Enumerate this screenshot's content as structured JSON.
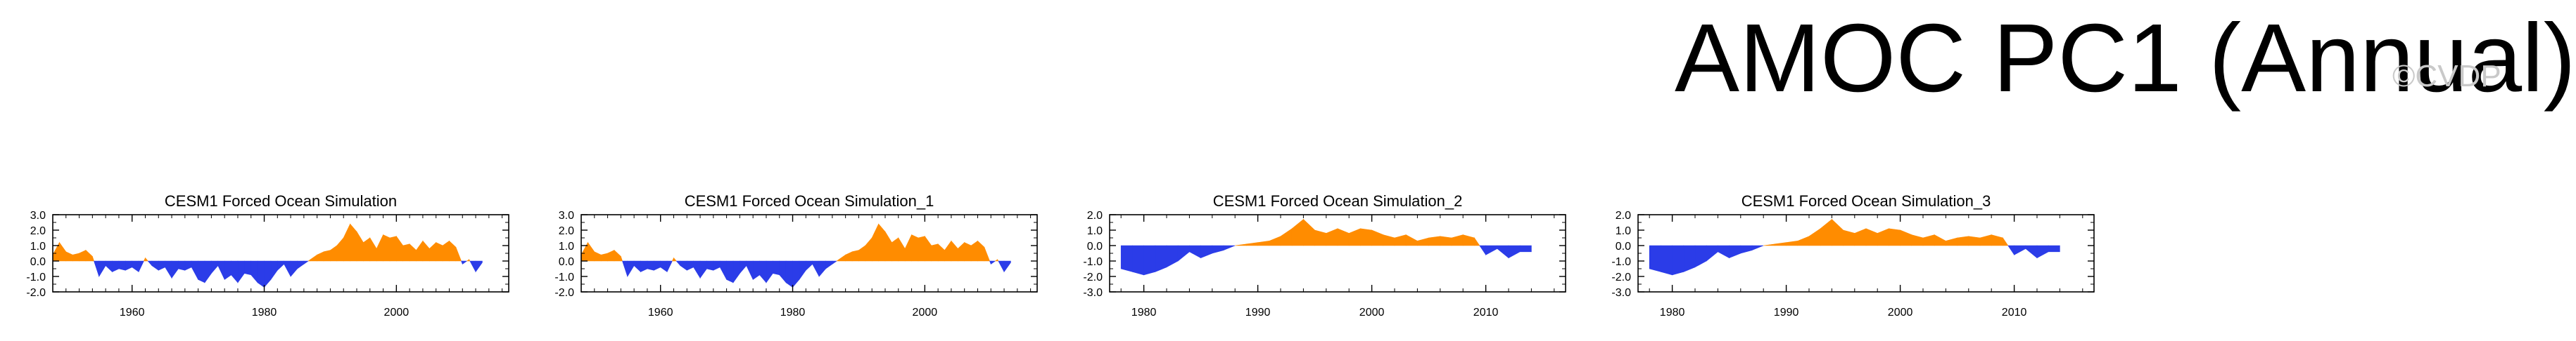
{
  "title": "AMOC PC1 (Annual)",
  "watermark": "©CVDP",
  "colors": {
    "positive": "#ff8c00",
    "negative": "#2b3ce8",
    "axis": "#000000"
  },
  "chart_data": [
    {
      "type": "area",
      "title": "CESM1 Forced Ocean Simulation",
      "xlabel": "",
      "ylabel": "",
      "xlim": [
        1948,
        2017
      ],
      "ylim": [
        -2.0,
        3.0
      ],
      "xticks": [
        1960,
        1980,
        2000
      ],
      "yticks": [
        3.0,
        2.0,
        1.0,
        0.0,
        -1.0,
        -2.0
      ],
      "x": [
        1948,
        1949,
        1950,
        1951,
        1952,
        1953,
        1954,
        1955,
        1956,
        1957,
        1958,
        1959,
        1960,
        1961,
        1962,
        1963,
        1964,
        1965,
        1966,
        1967,
        1968,
        1969,
        1970,
        1971,
        1972,
        1973,
        1974,
        1975,
        1976,
        1977,
        1978,
        1979,
        1980,
        1981,
        1982,
        1983,
        1984,
        1985,
        1986,
        1987,
        1988,
        1989,
        1990,
        1991,
        1992,
        1993,
        1994,
        1995,
        1996,
        1997,
        1998,
        1999,
        2000,
        2001,
        2002,
        2003,
        2004,
        2005,
        2006,
        2007,
        2008,
        2009,
        2010,
        2011,
        2012,
        2013
      ],
      "values": [
        0.4,
        1.2,
        0.6,
        0.4,
        0.5,
        0.7,
        0.3,
        -1.0,
        -0.3,
        -0.7,
        -0.5,
        -0.6,
        -0.4,
        -0.7,
        0.2,
        -0.3,
        -0.6,
        -0.4,
        -1.1,
        -0.5,
        -0.6,
        -0.4,
        -1.2,
        -1.4,
        -0.8,
        -0.3,
        -1.2,
        -0.9,
        -1.4,
        -0.8,
        -0.9,
        -1.4,
        -1.7,
        -1.2,
        -0.6,
        -0.2,
        -1.0,
        -0.5,
        -0.2,
        0.1,
        0.4,
        0.6,
        0.7,
        1.0,
        1.5,
        2.4,
        1.9,
        1.2,
        1.5,
        0.8,
        1.7,
        1.5,
        1.6,
        1.0,
        1.1,
        0.7,
        1.3,
        0.8,
        1.2,
        1.0,
        1.3,
        0.9,
        -0.2,
        0.1,
        -0.7,
        -0.1
      ]
    },
    {
      "type": "area",
      "title": "CESM1 Forced Ocean Simulation_1",
      "xlabel": "",
      "ylabel": "",
      "xlim": [
        1948,
        2017
      ],
      "ylim": [
        -2.0,
        3.0
      ],
      "xticks": [
        1960,
        1980,
        2000
      ],
      "yticks": [
        3.0,
        2.0,
        1.0,
        0.0,
        -1.0,
        -2.0
      ],
      "x": [
        1948,
        1949,
        1950,
        1951,
        1952,
        1953,
        1954,
        1955,
        1956,
        1957,
        1958,
        1959,
        1960,
        1961,
        1962,
        1963,
        1964,
        1965,
        1966,
        1967,
        1968,
        1969,
        1970,
        1971,
        1972,
        1973,
        1974,
        1975,
        1976,
        1977,
        1978,
        1979,
        1980,
        1981,
        1982,
        1983,
        1984,
        1985,
        1986,
        1987,
        1988,
        1989,
        1990,
        1991,
        1992,
        1993,
        1994,
        1995,
        1996,
        1997,
        1998,
        1999,
        2000,
        2001,
        2002,
        2003,
        2004,
        2005,
        2006,
        2007,
        2008,
        2009,
        2010,
        2011,
        2012,
        2013
      ],
      "values": [
        0.4,
        1.2,
        0.6,
        0.4,
        0.5,
        0.7,
        0.3,
        -1.0,
        -0.3,
        -0.7,
        -0.5,
        -0.6,
        -0.4,
        -0.7,
        0.2,
        -0.3,
        -0.6,
        -0.4,
        -1.1,
        -0.5,
        -0.6,
        -0.4,
        -1.2,
        -1.4,
        -0.8,
        -0.3,
        -1.2,
        -0.9,
        -1.4,
        -0.8,
        -0.9,
        -1.4,
        -1.7,
        -1.2,
        -0.6,
        -0.2,
        -1.0,
        -0.5,
        -0.2,
        0.1,
        0.4,
        0.6,
        0.7,
        1.0,
        1.5,
        2.4,
        1.9,
        1.2,
        1.5,
        0.8,
        1.7,
        1.5,
        1.6,
        1.0,
        1.1,
        0.7,
        1.3,
        0.8,
        1.2,
        1.0,
        1.3,
        0.9,
        -0.2,
        0.1,
        -0.7,
        -0.1
      ]
    },
    {
      "type": "area",
      "title": "CESM1 Forced Ocean Simulation_2",
      "xlabel": "",
      "ylabel": "",
      "xlim": [
        1977,
        2017
      ],
      "ylim": [
        -3.0,
        2.0
      ],
      "xticks": [
        1980,
        1990,
        2000,
        2010
      ],
      "yticks": [
        2.0,
        1.0,
        0.0,
        -1.0,
        -2.0,
        -3.0
      ],
      "x": [
        1978,
        1979,
        1980,
        1981,
        1982,
        1983,
        1984,
        1985,
        1986,
        1987,
        1988,
        1989,
        1990,
        1991,
        1992,
        1993,
        1994,
        1995,
        1996,
        1997,
        1998,
        1999,
        2000,
        2001,
        2002,
        2003,
        2004,
        2005,
        2006,
        2007,
        2008,
        2009,
        2010,
        2011,
        2012,
        2013,
        2014
      ],
      "values": [
        -1.5,
        -1.7,
        -1.9,
        -1.7,
        -1.4,
        -1.0,
        -0.4,
        -0.8,
        -0.5,
        -0.3,
        0.0,
        0.1,
        0.2,
        0.3,
        0.6,
        1.1,
        1.7,
        1.0,
        0.8,
        1.1,
        0.8,
        1.1,
        1.0,
        0.7,
        0.5,
        0.7,
        0.3,
        0.5,
        0.6,
        0.5,
        0.7,
        0.5,
        -0.6,
        -0.2,
        -0.8,
        -0.4,
        -0.4
      ]
    },
    {
      "type": "area",
      "title": "CESM1 Forced Ocean Simulation_3",
      "xlabel": "",
      "ylabel": "",
      "xlim": [
        1977,
        2017
      ],
      "ylim": [
        -3.0,
        2.0
      ],
      "xticks": [
        1980,
        1990,
        2000,
        2010
      ],
      "yticks": [
        2.0,
        1.0,
        0.0,
        -1.0,
        -2.0,
        -3.0
      ],
      "x": [
        1978,
        1979,
        1980,
        1981,
        1982,
        1983,
        1984,
        1985,
        1986,
        1987,
        1988,
        1989,
        1990,
        1991,
        1992,
        1993,
        1994,
        1995,
        1996,
        1997,
        1998,
        1999,
        2000,
        2001,
        2002,
        2003,
        2004,
        2005,
        2006,
        2007,
        2008,
        2009,
        2010,
        2011,
        2012,
        2013,
        2014
      ],
      "values": [
        -1.5,
        -1.7,
        -1.9,
        -1.7,
        -1.4,
        -1.0,
        -0.4,
        -0.8,
        -0.5,
        -0.3,
        0.0,
        0.1,
        0.2,
        0.3,
        0.6,
        1.1,
        1.7,
        1.0,
        0.8,
        1.1,
        0.8,
        1.1,
        1.0,
        0.7,
        0.5,
        0.7,
        0.3,
        0.5,
        0.6,
        0.5,
        0.7,
        0.5,
        -0.6,
        -0.2,
        -0.8,
        -0.4,
        -0.4
      ]
    }
  ]
}
